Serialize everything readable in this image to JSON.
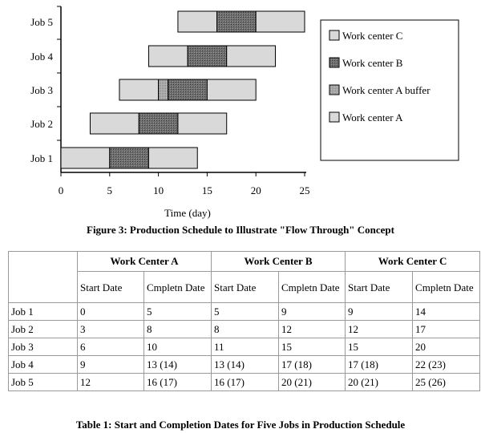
{
  "chart_data": {
    "type": "bar",
    "orientation": "horizontal",
    "stacked": true,
    "xlabel": "Time (day)",
    "xlim": [
      0,
      25
    ],
    "xticks": [
      0,
      5,
      10,
      15,
      20,
      25
    ],
    "categories": [
      "Job 1",
      "Job 2",
      "Job 3",
      "Job 4",
      "Job 5"
    ],
    "legend": [
      {
        "name": "Work center C",
        "color": "#d9d9d9",
        "pattern": "light-grey"
      },
      {
        "name": "Work center B",
        "color": "#777777",
        "pattern": "dark-dotted"
      },
      {
        "name": "Work center A buffer",
        "color": "#a8a8a8",
        "pattern": "medium-dotted"
      },
      {
        "name": "Work center A",
        "color": "#d9d9d9",
        "pattern": "light-grey"
      }
    ],
    "legend_position": "right",
    "series": [
      {
        "name": "Work center A",
        "segments": [
          [
            0,
            5
          ],
          [
            3,
            8
          ],
          [
            6,
            10
          ],
          [
            9,
            13
          ],
          [
            12,
            16
          ]
        ]
      },
      {
        "name": "Work center A buffer",
        "segments": [
          [
            5,
            5
          ],
          [
            8,
            8
          ],
          [
            10,
            11
          ],
          [
            13,
            13
          ],
          [
            16,
            16
          ]
        ]
      },
      {
        "name": "Work center B",
        "segments": [
          [
            5,
            9
          ],
          [
            8,
            12
          ],
          [
            11,
            15
          ],
          [
            13,
            17
          ],
          [
            16,
            20
          ]
        ]
      },
      {
        "name": "Work center C",
        "segments": [
          [
            9,
            14
          ],
          [
            12,
            17
          ],
          [
            15,
            20
          ],
          [
            17,
            22
          ],
          [
            20,
            25
          ]
        ]
      }
    ]
  },
  "figure_caption": "Figure 3: Production Schedule to Illustrate \"Flow Through\" Concept",
  "table": {
    "groups": [
      "Work Center A",
      "Work Center B",
      "Work Center C"
    ],
    "subheaders": [
      "Start Date",
      "Cmpletn Date"
    ],
    "rows": [
      {
        "label": "Job 1",
        "cells": [
          "0",
          "5",
          "5",
          "9",
          "9",
          "14"
        ]
      },
      {
        "label": "Job 2",
        "cells": [
          "3",
          "8",
          "8",
          "12",
          "12",
          "17"
        ]
      },
      {
        "label": "Job 3",
        "cells": [
          "6",
          "10",
          "11",
          "15",
          "15",
          "20"
        ]
      },
      {
        "label": "Job 4",
        "cells": [
          "9",
          "13 (14)",
          "13 (14)",
          "17 (18)",
          "17 (18)",
          "22 (23)"
        ]
      },
      {
        "label": "Job 5",
        "cells": [
          "12",
          "16 (17)",
          "16 (17)",
          "20 (21)",
          "20 (21)",
          "25 (26)"
        ]
      }
    ]
  },
  "table_caption": "Table 1: Start and Completion Dates for Five Jobs in Production Schedule"
}
